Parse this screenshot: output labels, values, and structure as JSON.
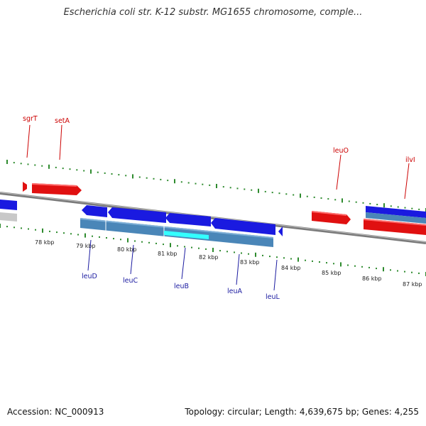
{
  "title": "Escherichia coli str. K-12 substr. MG1655 chromosome, comple...",
  "footer": {
    "accession": "Accession: NC_000913",
    "summary": "Topology: circular; Length: 4,639,675 bp; Genes: 4,255"
  },
  "colors": {
    "backbone": "#7a7a7a",
    "tick": "#2e8b2e",
    "forward_gene": "#e01010",
    "reverse_gene": "#1a1ae0",
    "cds_bar": "#4a86b8",
    "highlight": "#33ffff",
    "top_label": "#cc0000",
    "bottom_label": "#1a1aa0"
  },
  "scale_labels": [
    "78 kbp",
    "79 kbp",
    "80 kbp",
    "81 kbp",
    "82 kbp",
    "83 kbp",
    "84 kbp",
    "85 kbp",
    "86 kbp",
    "87 kbp"
  ],
  "top_genes": [
    "sgrT",
    "setA",
    "leuO",
    "ilvI"
  ],
  "bottom_genes": [
    "leuD",
    "leuC",
    "leuB",
    "leuA",
    "leuL"
  ]
}
